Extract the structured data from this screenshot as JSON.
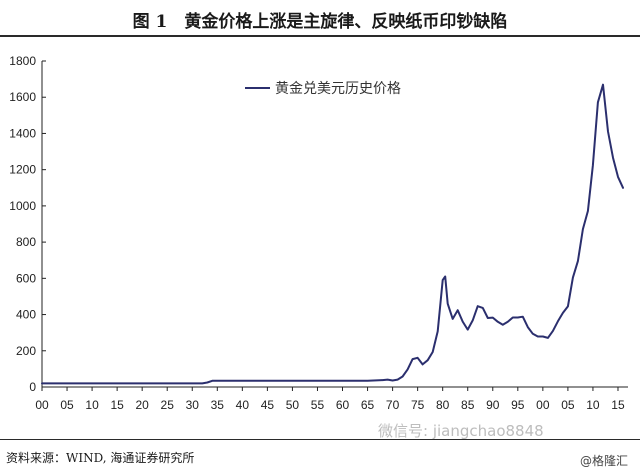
{
  "header": {
    "title": "图 1　黄金价格上涨是主旋律、反映纸币印钞缺陷"
  },
  "footer": {
    "source": "资料来源：WIND, 海通证券研究所"
  },
  "watermark": {
    "wechat": "微信号: jiangchao8848",
    "brand": "@格隆汇"
  },
  "colors": {
    "line": "#2b2f6e",
    "axis": "#222222"
  },
  "chart_data": {
    "type": "line",
    "series": [
      {
        "name": "黄金兑美元历史价格",
        "x": [
          1900,
          1910,
          1920,
          1930,
          1932,
          1933,
          1934,
          1935,
          1940,
          1950,
          1960,
          1965,
          1968,
          1969,
          1970,
          1971,
          1972,
          1973,
          1974,
          1975,
          1976,
          1977,
          1978,
          1979,
          1980,
          1980.5,
          1981,
          1982,
          1983,
          1984,
          1985,
          1986,
          1987,
          1988,
          1989,
          1990,
          1991,
          1992,
          1993,
          1994,
          1995,
          1996,
          1997,
          1998,
          1999,
          2000,
          2001,
          2002,
          2003,
          2004,
          2005,
          2006,
          2007,
          2008,
          2009,
          2010,
          2011,
          2012,
          2013,
          2014,
          2015,
          2016
        ],
        "values": [
          20,
          20,
          20,
          20,
          20,
          25,
          34,
          35,
          35,
          35,
          35,
          35,
          38,
          41,
          36,
          41,
          58,
          97,
          154,
          161,
          125,
          148,
          193,
          307,
          590,
          610,
          460,
          376,
          424,
          361,
          317,
          368,
          446,
          437,
          381,
          383,
          360,
          344,
          360,
          384,
          384,
          388,
          331,
          294,
          279,
          279,
          271,
          310,
          363,
          409,
          445,
          604,
          695,
          872,
          972,
          1225,
          1572,
          1669,
          1411,
          1266,
          1160,
          1100
        ]
      }
    ],
    "x_ticks": [
      "00",
      "05",
      "10",
      "15",
      "20",
      "25",
      "30",
      "35",
      "40",
      "45",
      "50",
      "55",
      "60",
      "65",
      "70",
      "75",
      "80",
      "85",
      "90",
      "95",
      "00",
      "05",
      "10",
      "15"
    ],
    "y_ticks": [
      "0",
      "200",
      "400",
      "600",
      "800",
      "1000",
      "1200",
      "1400",
      "1600",
      "1800"
    ],
    "xlim": [
      1900,
      2017
    ],
    "ylim": [
      0,
      1800
    ],
    "legend": "top-center",
    "grid": false
  }
}
